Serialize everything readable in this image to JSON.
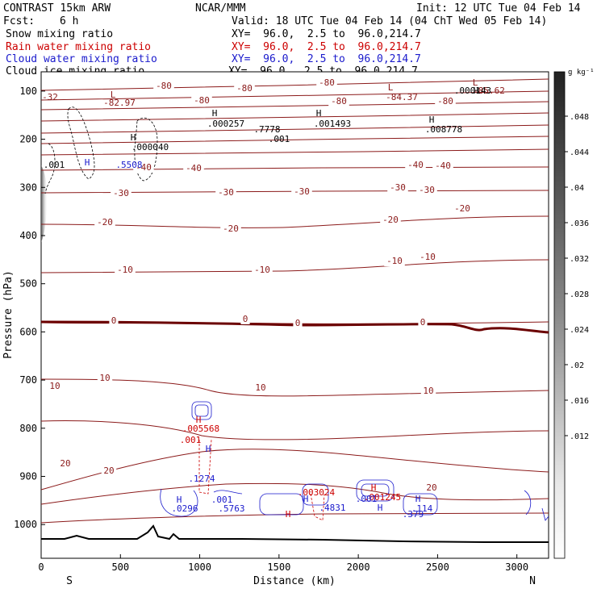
{
  "header": {
    "model": "CONTRAST 15km ARW",
    "org": "NCAR/MMM",
    "init": "Init: 12 UTC Tue 04 Feb 14",
    "fcst_label": "Fcst:",
    "fcst_value": "6 h",
    "valid": "Valid: 18 UTC Tue 04 Feb 14 (04 ChT Wed 05 Feb 14)",
    "fields": [
      {
        "name": "Snow mixing ratio",
        "xy": "XY=  96.0,  2.5 to  96.0,214.7",
        "color": "#000000"
      },
      {
        "name": "Rain water mixing ratio",
        "xy": "XY=  96.0,  2.5 to  96.0,214.7",
        "color": "#cc0000"
      },
      {
        "name": "Cloud water mixing ratio",
        "xy": "XY=  96.0,  2.5 to  96.0,214.7",
        "color": "#1a1acc"
      },
      {
        "name": "Cloud ice mixing ratio",
        "xy": "XY=  96.0,  2.5 to  96.0,214.7",
        "color": "#000000"
      }
    ]
  },
  "chart_data": {
    "type": "cross-section contour",
    "xlabel": "Distance (km)",
    "ylabel": "Pressure (hPa)",
    "xlim": [
      0,
      3200
    ],
    "ylim": [
      1070,
      60
    ],
    "xticks": [
      0,
      500,
      1000,
      1500,
      2000,
      2500,
      3000
    ],
    "yticks": [
      100,
      200,
      300,
      400,
      500,
      600,
      700,
      800,
      900,
      1000
    ],
    "x_end_labels": {
      "left": "S",
      "right": "N"
    },
    "colorbar": {
      "unit": "g kg⁻¹",
      "ticks": [
        ".012",
        ".016",
        ".02",
        ".024",
        ".028",
        ".032",
        ".036",
        ".04",
        ".044",
        ".048"
      ]
    },
    "temperature_contours": [
      {
        "value": -80,
        "labels": [
          "-80",
          "-80",
          "-80",
          "-80",
          "-80",
          "-80"
        ]
      },
      {
        "value": -40,
        "labels": [
          "-40",
          "-40",
          "-40",
          "-40"
        ]
      },
      {
        "value": -30,
        "labels": [
          "-30",
          "-30",
          "-30",
          "-30",
          "-30"
        ]
      },
      {
        "value": -20,
        "labels": [
          "-20",
          "-20",
          "-20",
          "-20"
        ]
      },
      {
        "value": -10,
        "labels": [
          "-10",
          "-10",
          "-10",
          "-10"
        ]
      },
      {
        "value": 0,
        "labels": [
          "0",
          "0",
          "0",
          "0"
        ]
      },
      {
        "value": 10,
        "labels": [
          "10",
          "10",
          "10",
          "10"
        ]
      },
      {
        "value": 20,
        "labels": [
          "20",
          "20",
          "20"
        ]
      }
    ],
    "annotations": [
      {
        "text": "-32",
        "color": "#8b1a1a"
      },
      {
        "text": "L",
        "color": "#8b1a1a"
      },
      {
        "text": "-82.97",
        "color": "#8b1a1a"
      },
      {
        "text": "L",
        "color": "#8b1a1a"
      },
      {
        "text": "-85.62",
        "color": "#8b1a1a"
      },
      {
        "text": "L",
        "color": "#8b1a1a"
      },
      {
        "text": "-84.37",
        "color": "#8b1a1a"
      },
      {
        "text": "H",
        "color": "#000000"
      },
      {
        "text": ".000143",
        "color": "#000000"
      },
      {
        "text": "H",
        "color": "#000000"
      },
      {
        "text": ".000257",
        "color": "#000000"
      },
      {
        "text": "H",
        "color": "#000000"
      },
      {
        "text": ".001493",
        "color": "#000000"
      },
      {
        "text": "H",
        "color": "#000000"
      },
      {
        "text": ".008778",
        "color": "#000000"
      },
      {
        "text": "H",
        "color": "#000000"
      },
      {
        "text": ".000040",
        "color": "#000000"
      },
      {
        "text": ".7778",
        "color": "#000000"
      },
      {
        "text": ".001",
        "color": "#000000"
      },
      {
        "text": ".001",
        "color": "#000000"
      },
      {
        "text": "H",
        "color": "#1a1acc"
      },
      {
        "text": ".5508",
        "color": "#1a1acc"
      },
      {
        "text": "H",
        "color": "#cc0000"
      },
      {
        "text": ".005568",
        "color": "#cc0000"
      },
      {
        "text": ".001",
        "color": "#cc0000"
      },
      {
        "text": "H",
        "color": "#1a1acc"
      },
      {
        "text": ".1274",
        "color": "#1a1acc"
      },
      {
        "text": "H",
        "color": "#1a1acc"
      },
      {
        "text": ".0296",
        "color": "#1a1acc"
      },
      {
        "text": ".001",
        "color": "#1a1acc"
      },
      {
        "text": ".5763",
        "color": "#1a1acc"
      },
      {
        "text": "H",
        "color": "#cc0000"
      },
      {
        "text": ".003024",
        "color": "#cc0000"
      },
      {
        "text": "H",
        "color": "#1a1acc"
      },
      {
        "text": ".4831",
        "color": "#1a1acc"
      },
      {
        "text": "H",
        "color": "#cc0000"
      },
      {
        "text": ".001245",
        "color": "#cc0000"
      },
      {
        "text": ".001",
        "color": "#1a1acc"
      },
      {
        "text": "H",
        "color": "#1a1acc"
      },
      {
        "text": ".379",
        "color": "#1a1acc"
      },
      {
        "text": "H",
        "color": "#1a1acc"
      },
      {
        "text": ".114",
        "color": "#1a1acc"
      }
    ]
  }
}
